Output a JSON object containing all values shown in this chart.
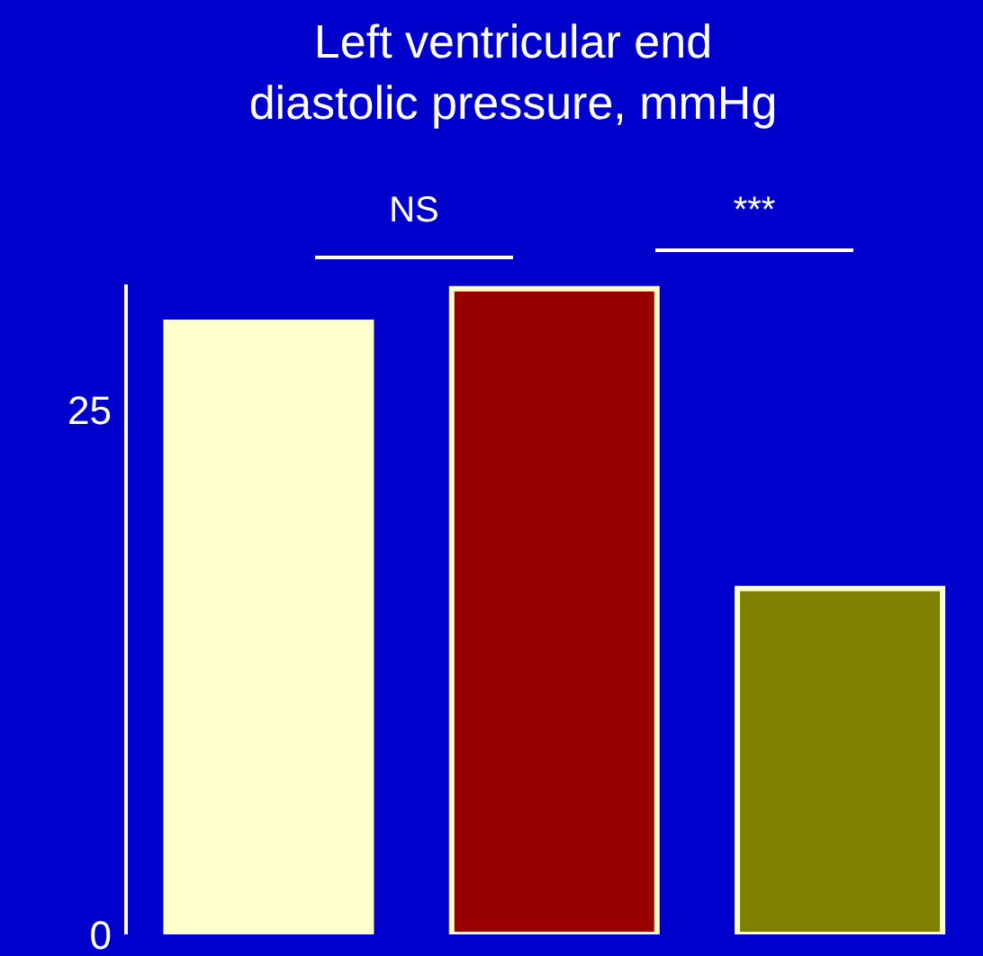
{
  "chart_data": {
    "type": "bar",
    "title": "Left ventricular end\ndiastolic pressure, mmHg",
    "categories": [
      null,
      null,
      null
    ],
    "values": [
      29.2,
      30.8,
      16.5
    ],
    "colors": [
      "#ffffcc",
      "#990000",
      "#808000"
    ],
    "ylim": [
      0,
      31
    ],
    "yticks": [
      0,
      25
    ],
    "annotations": [
      "NS",
      "***"
    ]
  }
}
